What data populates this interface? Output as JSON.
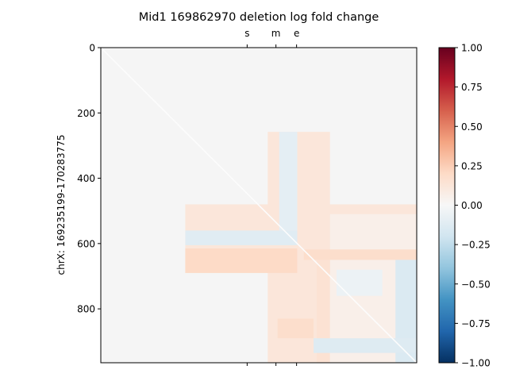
{
  "chart_data": {
    "type": "heatmap",
    "title": "Mid1 169862970 deletion log fold change",
    "ylabel": "chrX: 169235199-170283775",
    "xlabel": "",
    "xlim": [
      0,
      965
    ],
    "ylim": [
      965,
      0
    ],
    "y_ticks": [
      {
        "value": 0,
        "label": "0"
      },
      {
        "value": 200,
        "label": "200"
      },
      {
        "value": 400,
        "label": "400"
      },
      {
        "value": 600,
        "label": "600"
      },
      {
        "value": 800,
        "label": "800"
      }
    ],
    "top_ticks": [
      {
        "value": 447,
        "label": "s"
      },
      {
        "value": 535,
        "label": "m"
      },
      {
        "value": 598,
        "label": "e"
      }
    ],
    "bottom_ticks": [
      447,
      535,
      598
    ],
    "grid": false,
    "colorbar": {
      "colormap": "RdBu_r",
      "range": [
        -1.0,
        1.0
      ],
      "ticks": [
        {
          "value": 1.0,
          "label": "1.00"
        },
        {
          "value": 0.75,
          "label": "0.75"
        },
        {
          "value": 0.5,
          "label": "0.50"
        },
        {
          "value": 0.25,
          "label": "0.25"
        },
        {
          "value": 0.0,
          "label": "0.00"
        },
        {
          "value": -0.25,
          "label": "−0.25"
        },
        {
          "value": -0.5,
          "label": "−0.50"
        },
        {
          "value": -0.75,
          "label": "−0.75"
        },
        {
          "value": -1.0,
          "label": "−1.00"
        }
      ]
    },
    "regions": [
      {
        "name": "cross-horizontal",
        "x": [
          258,
          965
        ],
        "y": [
          480,
          690
        ],
        "value": 0.12
      },
      {
        "name": "cross-vertical",
        "x": [
          510,
          700
        ],
        "y": [
          258,
          965
        ],
        "value": 0.12
      },
      {
        "name": "lower-right-block",
        "x": [
          700,
          965
        ],
        "y": [
          510,
          965
        ],
        "value": 0.06
      },
      {
        "name": "blue-band-row",
        "x": [
          258,
          600
        ],
        "y": [
          560,
          605
        ],
        "value": -0.12
      },
      {
        "name": "blue-band-col",
        "x": [
          545,
          600
        ],
        "y": [
          258,
          560
        ],
        "value": -0.1
      },
      {
        "name": "red-band-row",
        "x": [
          258,
          600
        ],
        "y": [
          615,
          690
        ],
        "value": 0.2
      },
      {
        "name": "red-stripe-row",
        "x": [
          620,
          965
        ],
        "y": [
          618,
          650
        ],
        "value": 0.18
      },
      {
        "name": "red-stripe-col",
        "x": [
          660,
          700
        ],
        "y": [
          650,
          965
        ],
        "value": 0.15
      },
      {
        "name": "blue-right-col",
        "x": [
          900,
          965
        ],
        "y": [
          650,
          965
        ],
        "value": -0.15
      },
      {
        "name": "blue-bottom-row",
        "x": [
          650,
          965
        ],
        "y": [
          890,
          935
        ],
        "value": -0.13
      },
      {
        "name": "red-bottom-left",
        "x": [
          540,
          650
        ],
        "y": [
          830,
          890
        ],
        "value": 0.18
      },
      {
        "name": "blue-upper-mid",
        "x": [
          720,
          860
        ],
        "y": [
          680,
          760
        ],
        "value": -0.06
      }
    ],
    "diagonal_value": 0.0,
    "background_value": 0.0
  }
}
